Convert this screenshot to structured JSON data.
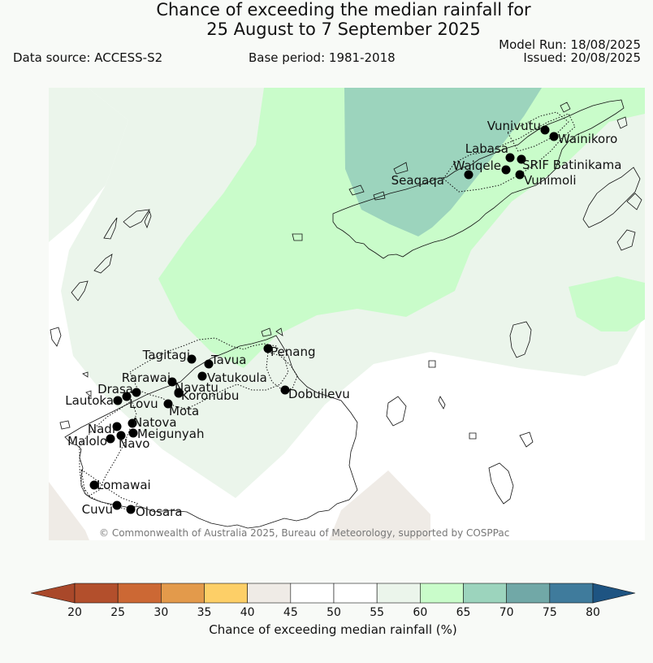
{
  "header": {
    "title_line1": "Chance of exceeding the median rainfall for",
    "title_line2": "25 August to 7 September 2025",
    "data_source": "Data source: ACCESS-S2",
    "base_period": "Base period: 1981-2018",
    "model_run": "Model Run: 18/08/2025",
    "issued": "Issued: 20/08/2025"
  },
  "map": {
    "copyright": "© Commonwealth of Australia 2025, Bureau of Meteorology, supported by COSPPac",
    "palette": {
      "c40_45": "#efebe6",
      "c45_55": "#ffffff",
      "c55_60": "#ebf5eb",
      "c60_65": "#c9fcca",
      "c65_70": "#9cd4bd"
    },
    "towns": [
      {
        "name": "Vunivutu"
      },
      {
        "name": "Wainikoro"
      },
      {
        "name": "Labasa"
      },
      {
        "name": "Waiqele"
      },
      {
        "name": "SRIF Batinikama"
      },
      {
        "name": "Seaqaqa"
      },
      {
        "name": "Vunimoli"
      },
      {
        "name": "Tagitagi"
      },
      {
        "name": "Tavua"
      },
      {
        "name": "Penang"
      },
      {
        "name": "Vatukoula"
      },
      {
        "name": "Rarawai"
      },
      {
        "name": "Navatu"
      },
      {
        "name": "Drasa"
      },
      {
        "name": "Koronubu"
      },
      {
        "name": "Dobuilevu"
      },
      {
        "name": "Lautoka"
      },
      {
        "name": "Lovu"
      },
      {
        "name": "Mota"
      },
      {
        "name": "Natova"
      },
      {
        "name": "Nadi"
      },
      {
        "name": "Meigunyah"
      },
      {
        "name": "Malolo"
      },
      {
        "name": "Navo"
      },
      {
        "name": "Lomawai"
      },
      {
        "name": "Cuvu"
      },
      {
        "name": "Olosara"
      }
    ]
  },
  "colorbar": {
    "ticks": [
      "20",
      "25",
      "30",
      "35",
      "40",
      "45",
      "50",
      "55",
      "60",
      "65",
      "70",
      "75",
      "80"
    ],
    "colors": [
      "#a9482a",
      "#b34f2c",
      "#cc6834",
      "#e39a4b",
      "#fdcf67",
      "#efebe6",
      "#ffffff",
      "#ffffff",
      "#ebf5eb",
      "#c9fcca",
      "#9cd4bd",
      "#71a8a7",
      "#3f7b9c",
      "#1e5482"
    ],
    "label": "Chance of exceeding median rainfall (%)"
  }
}
